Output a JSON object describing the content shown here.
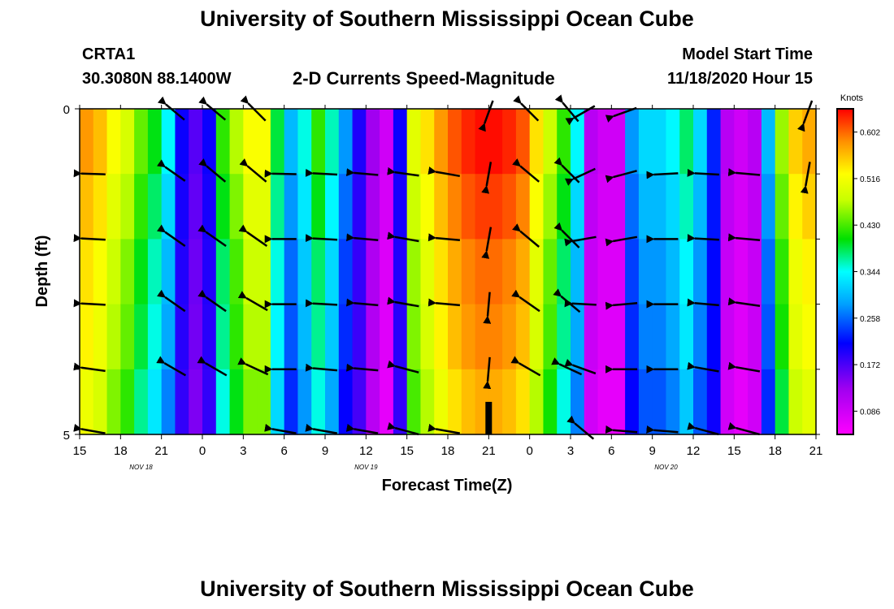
{
  "page": {
    "title_top": "University of Southern Mississippi Ocean Cube",
    "title_bottom": "University of Southern Mississippi Ocean Cube",
    "station": "CRTA1",
    "coords": "30.3080N 88.1400W",
    "plot_title": "2-D Currents Speed-Magnitude",
    "model_label": "Model Start Time",
    "model_time": "11/18/2020 Hour 15"
  },
  "chart_data": {
    "type": "heatmap",
    "title": "2-D Currents Speed-Magnitude",
    "xlabel": "Forecast Time(Z)",
    "ylabel": "Depth (ft)",
    "x_ticks": [
      "15",
      "18",
      "21",
      "0",
      "3",
      "6",
      "9",
      "12",
      "15",
      "18",
      "21",
      "0",
      "3",
      "6",
      "9",
      "12",
      "15",
      "18",
      "21"
    ],
    "date_labels": [
      {
        "label": "NOV 18",
        "hour_index": 4.5
      },
      {
        "label": "NOV 19",
        "hour_index": 21
      },
      {
        "label": "NOV 20",
        "hour_index": 43
      }
    ],
    "x_hours_range": [
      0,
      54
    ],
    "y_ticks": [
      "0",
      "5"
    ],
    "ylim": [
      0,
      5
    ],
    "colorbar": {
      "label": "Knots",
      "ticks": [
        "0.602",
        "0.516",
        "0.430",
        "0.344",
        "0.258",
        "0.172",
        "0.086"
      ],
      "range": [
        0.043,
        0.645
      ]
    },
    "depth_layers": 5,
    "speed_knots_by_hour": [
      0.56,
      0.54,
      0.5,
      0.47,
      0.42,
      0.38,
      0.32,
      0.2,
      0.16,
      0.2,
      0.4,
      0.45,
      0.5,
      0.5,
      0.37,
      0.28,
      0.33,
      0.4,
      0.34,
      0.26,
      0.19,
      0.12,
      0.08,
      0.2,
      0.48,
      0.52,
      0.56,
      0.59,
      0.61,
      0.62,
      0.62,
      0.61,
      0.59,
      0.52,
      0.46,
      0.4,
      0.32,
      0.1,
      0.08,
      0.08,
      0.26,
      0.3,
      0.3,
      0.32,
      0.36,
      0.3,
      0.22,
      0.1,
      0.08,
      0.1,
      0.28,
      0.44,
      0.53,
      0.55
    ],
    "depth_speed_offsets": [
      0.02,
      0.0,
      -0.02,
      -0.03,
      -0.05
    ],
    "arrows": [
      {
        "hour": 1,
        "depth": 1,
        "angle": 2
      },
      {
        "hour": 1,
        "depth": 2,
        "angle": 3
      },
      {
        "hour": 1,
        "depth": 3,
        "angle": 3
      },
      {
        "hour": 1,
        "depth": 4,
        "angle": 8
      },
      {
        "hour": 1,
        "depth": 5,
        "angle": 10
      },
      {
        "hour": 7,
        "depth": 0,
        "angle": 40
      },
      {
        "hour": 7,
        "depth": 1,
        "angle": 35
      },
      {
        "hour": 7,
        "depth": 2,
        "angle": 35
      },
      {
        "hour": 7,
        "depth": 3,
        "angle": 35
      },
      {
        "hour": 7,
        "depth": 4,
        "angle": 30
      },
      {
        "hour": 10,
        "depth": 0,
        "angle": 40
      },
      {
        "hour": 10,
        "depth": 1,
        "angle": 40
      },
      {
        "hour": 10,
        "depth": 2,
        "angle": 35
      },
      {
        "hour": 10,
        "depth": 3,
        "angle": 35
      },
      {
        "hour": 10,
        "depth": 4,
        "angle": 30
      },
      {
        "hour": 13,
        "depth": 0,
        "angle": 45
      },
      {
        "hour": 13,
        "depth": 1,
        "angle": 40
      },
      {
        "hour": 13,
        "depth": 2,
        "angle": 35
      },
      {
        "hour": 13,
        "depth": 3,
        "angle": 30
      },
      {
        "hour": 13,
        "depth": 4,
        "angle": 25
      },
      {
        "hour": 15,
        "depth": 1,
        "angle": 1
      },
      {
        "hour": 15,
        "depth": 2,
        "angle": 0
      },
      {
        "hour": 15,
        "depth": 3,
        "angle": 0
      },
      {
        "hour": 15,
        "depth": 4,
        "angle": 0
      },
      {
        "hour": 15,
        "depth": 5,
        "angle": 10
      },
      {
        "hour": 18,
        "depth": 1,
        "angle": 3
      },
      {
        "hour": 18,
        "depth": 2,
        "angle": 3
      },
      {
        "hour": 18,
        "depth": 3,
        "angle": 3
      },
      {
        "hour": 18,
        "depth": 4,
        "angle": 5
      },
      {
        "hour": 18,
        "depth": 5,
        "angle": 10
      },
      {
        "hour": 21,
        "depth": 1,
        "angle": 5
      },
      {
        "hour": 21,
        "depth": 2,
        "angle": 5
      },
      {
        "hour": 21,
        "depth": 3,
        "angle": 5
      },
      {
        "hour": 21,
        "depth": 4,
        "angle": 5
      },
      {
        "hour": 21,
        "depth": 5,
        "angle": 10
      },
      {
        "hour": 24,
        "depth": 1,
        "angle": 8
      },
      {
        "hour": 24,
        "depth": 2,
        "angle": 10
      },
      {
        "hour": 24,
        "depth": 3,
        "angle": 10
      },
      {
        "hour": 24,
        "depth": 4,
        "angle": 15
      },
      {
        "hour": 24,
        "depth": 5,
        "angle": 15
      },
      {
        "hour": 27,
        "depth": 1,
        "angle": 10
      },
      {
        "hour": 27,
        "depth": 2,
        "angle": 5
      },
      {
        "hour": 27,
        "depth": 3,
        "angle": 5
      },
      {
        "hour": 27,
        "depth": 5,
        "angle": 10
      },
      {
        "hour": 30,
        "depth": 0,
        "angle": -70
      },
      {
        "hour": 30,
        "depth": 1,
        "angle": -80
      },
      {
        "hour": 30,
        "depth": 2,
        "angle": -80
      },
      {
        "hour": 30,
        "depth": 3,
        "angle": -85
      },
      {
        "hour": 30,
        "depth": 4,
        "angle": -85
      },
      {
        "hour": 33,
        "depth": 0,
        "angle": 45
      },
      {
        "hour": 33,
        "depth": 1,
        "angle": 40
      },
      {
        "hour": 33,
        "depth": 2,
        "angle": 40
      },
      {
        "hour": 33,
        "depth": 3,
        "angle": 35
      },
      {
        "hour": 33,
        "depth": 4,
        "angle": 30
      },
      {
        "hour": 36,
        "depth": 0,
        "angle": 50
      },
      {
        "hour": 36,
        "depth": 1,
        "angle": 45
      },
      {
        "hour": 36,
        "depth": 2,
        "angle": 45
      },
      {
        "hour": 36,
        "depth": 3,
        "angle": 40
      },
      {
        "hour": 36,
        "depth": 4,
        "angle": 25
      },
      {
        "hour": 37,
        "depth": 0,
        "angle": -30
      },
      {
        "hour": 37,
        "depth": 1,
        "angle": -25
      },
      {
        "hour": 37,
        "depth": 2,
        "angle": -10
      },
      {
        "hour": 37,
        "depth": 3,
        "angle": 3
      },
      {
        "hour": 37,
        "depth": 4,
        "angle": 20
      },
      {
        "hour": 37,
        "depth": 5,
        "angle": 40
      },
      {
        "hour": 40,
        "depth": 0,
        "angle": -20
      },
      {
        "hour": 40,
        "depth": 1,
        "angle": -15
      },
      {
        "hour": 40,
        "depth": 2,
        "angle": -10
      },
      {
        "hour": 40,
        "depth": 3,
        "angle": -5
      },
      {
        "hour": 40,
        "depth": 4,
        "angle": 0
      },
      {
        "hour": 40,
        "depth": 5,
        "angle": 5
      },
      {
        "hour": 43,
        "depth": 1,
        "angle": -3
      },
      {
        "hour": 43,
        "depth": 2,
        "angle": 0
      },
      {
        "hour": 43,
        "depth": 3,
        "angle": 0
      },
      {
        "hour": 43,
        "depth": 4,
        "angle": 0
      },
      {
        "hour": 43,
        "depth": 5,
        "angle": 5
      },
      {
        "hour": 46,
        "depth": 1,
        "angle": 3
      },
      {
        "hour": 46,
        "depth": 2,
        "angle": 3
      },
      {
        "hour": 46,
        "depth": 3,
        "angle": 5
      },
      {
        "hour": 46,
        "depth": 4,
        "angle": 10
      },
      {
        "hour": 46,
        "depth": 5,
        "angle": 15
      },
      {
        "hour": 49,
        "depth": 1,
        "angle": 5
      },
      {
        "hour": 49,
        "depth": 2,
        "angle": 5
      },
      {
        "hour": 49,
        "depth": 3,
        "angle": 8
      },
      {
        "hour": 49,
        "depth": 4,
        "angle": 10
      },
      {
        "hour": 49,
        "depth": 5,
        "angle": 15
      },
      {
        "hour": 53.4,
        "depth": 0,
        "angle": -70
      },
      {
        "hour": 53.4,
        "depth": 1,
        "angle": -80
      }
    ],
    "marker": {
      "hour": 30,
      "depth_from": 4.5,
      "depth_to": 5
    }
  }
}
